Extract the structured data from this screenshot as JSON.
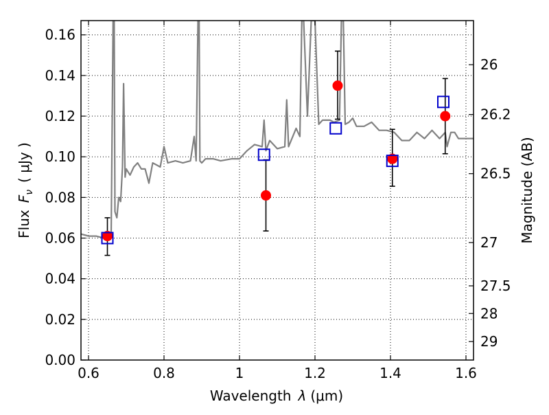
{
  "chart_data": {
    "type": "scatter",
    "xlabel": "Wavelength",
    "xlabel_symbol": "λ",
    "xlabel_unit": "(μm)",
    "ylabel_left": "Flux",
    "ylabel_left_symbol_main": "F",
    "ylabel_left_symbol_sub": "ν",
    "ylabel_left_unit": "( μJy )",
    "ylabel_right": "Magnitude (AB)",
    "xlim": [
      0.58,
      1.62
    ],
    "ylim": [
      0.0,
      0.167
    ],
    "grid": true,
    "x_ticks": [
      {
        "value": 0.6,
        "label": "0.6"
      },
      {
        "value": 0.8,
        "label": "0.8"
      },
      {
        "value": 1.0,
        "label": "1"
      },
      {
        "value": 1.2,
        "label": "1.2"
      },
      {
        "value": 1.4,
        "label": "1.4"
      },
      {
        "value": 1.6,
        "label": "1.6"
      }
    ],
    "y_ticks": [
      {
        "value": 0.0,
        "label": "0.00"
      },
      {
        "value": 0.02,
        "label": "0.02"
      },
      {
        "value": 0.04,
        "label": "0.04"
      },
      {
        "value": 0.06,
        "label": "0.06"
      },
      {
        "value": 0.08,
        "label": "0.08"
      },
      {
        "value": 0.1,
        "label": "0.10"
      },
      {
        "value": 0.12,
        "label": "0.12"
      },
      {
        "value": 0.14,
        "label": "0.14"
      },
      {
        "value": 0.16,
        "label": "0.16"
      }
    ],
    "right_ticks": [
      {
        "flux": 0.1453,
        "label": "26"
      },
      {
        "flux": 0.1208,
        "label": "26.2"
      },
      {
        "flux": 0.0917,
        "label": "26.5"
      },
      {
        "flux": 0.0578,
        "label": "27"
      },
      {
        "flux": 0.0365,
        "label": "27.5"
      },
      {
        "flux": 0.0229,
        "label": "28"
      },
      {
        "flux": 0.0091,
        "label": "29"
      }
    ],
    "series": [
      {
        "kind": "line",
        "color": "#808080",
        "x": [
          0.58,
          0.6,
          0.62,
          0.64,
          0.655,
          0.66,
          0.665,
          0.668,
          0.67,
          0.675,
          0.68,
          0.685,
          0.69,
          0.693,
          0.697,
          0.7,
          0.71,
          0.72,
          0.73,
          0.74,
          0.75,
          0.76,
          0.77,
          0.78,
          0.79,
          0.8,
          0.81,
          0.83,
          0.85,
          0.87,
          0.88,
          0.885,
          0.89,
          0.893,
          0.895,
          0.9,
          0.91,
          0.93,
          0.95,
          0.98,
          1.0,
          1.02,
          1.04,
          1.06,
          1.065,
          1.07,
          1.08,
          1.1,
          1.12,
          1.125,
          1.13,
          1.15,
          1.16,
          1.165,
          1.17,
          1.18,
          1.19,
          1.2,
          1.21,
          1.22,
          1.24,
          1.25,
          1.265,
          1.27,
          1.275,
          1.28,
          1.29,
          1.3,
          1.31,
          1.33,
          1.35,
          1.37,
          1.39,
          1.41,
          1.43,
          1.45,
          1.47,
          1.49,
          1.51,
          1.53,
          1.545,
          1.55,
          1.56,
          1.57,
          1.58,
          1.6,
          1.62
        ],
        "y": [
          0.062,
          0.061,
          0.061,
          0.06,
          0.06,
          0.061,
          0.167,
          0.167,
          0.073,
          0.07,
          0.08,
          0.078,
          0.095,
          0.136,
          0.09,
          0.094,
          0.091,
          0.095,
          0.097,
          0.094,
          0.094,
          0.087,
          0.097,
          0.096,
          0.095,
          0.105,
          0.097,
          0.098,
          0.097,
          0.098,
          0.11,
          0.098,
          0.167,
          0.167,
          0.098,
          0.097,
          0.099,
          0.099,
          0.098,
          0.099,
          0.099,
          0.103,
          0.106,
          0.105,
          0.118,
          0.103,
          0.108,
          0.104,
          0.105,
          0.128,
          0.105,
          0.114,
          0.11,
          0.167,
          0.167,
          0.12,
          0.167,
          0.167,
          0.116,
          0.118,
          0.118,
          0.117,
          0.118,
          0.167,
          0.167,
          0.116,
          0.117,
          0.119,
          0.115,
          0.115,
          0.117,
          0.113,
          0.113,
          0.112,
          0.108,
          0.108,
          0.112,
          0.109,
          0.113,
          0.109,
          0.112,
          0.105,
          0.112,
          0.112,
          0.109,
          0.109,
          0.109
        ]
      },
      {
        "kind": "model-points",
        "marker": "open-square",
        "color": "#0000cc",
        "x": [
          0.65,
          1.065,
          1.255,
          1.405,
          1.54
        ],
        "y": [
          0.06,
          0.101,
          0.114,
          0.098,
          0.127
        ]
      },
      {
        "kind": "observed-points",
        "marker": "filled-circle",
        "color": "#ff0000",
        "x": [
          0.65,
          1.07,
          1.26,
          1.405,
          1.545
        ],
        "y": [
          0.061,
          0.081,
          0.135,
          0.099,
          0.12
        ],
        "yerr_low": [
          0.0515,
          0.0635,
          0.1185,
          0.0855,
          0.1015
        ],
        "yerr_high": [
          0.07,
          0.0985,
          0.152,
          0.1135,
          0.1385
        ]
      }
    ]
  }
}
